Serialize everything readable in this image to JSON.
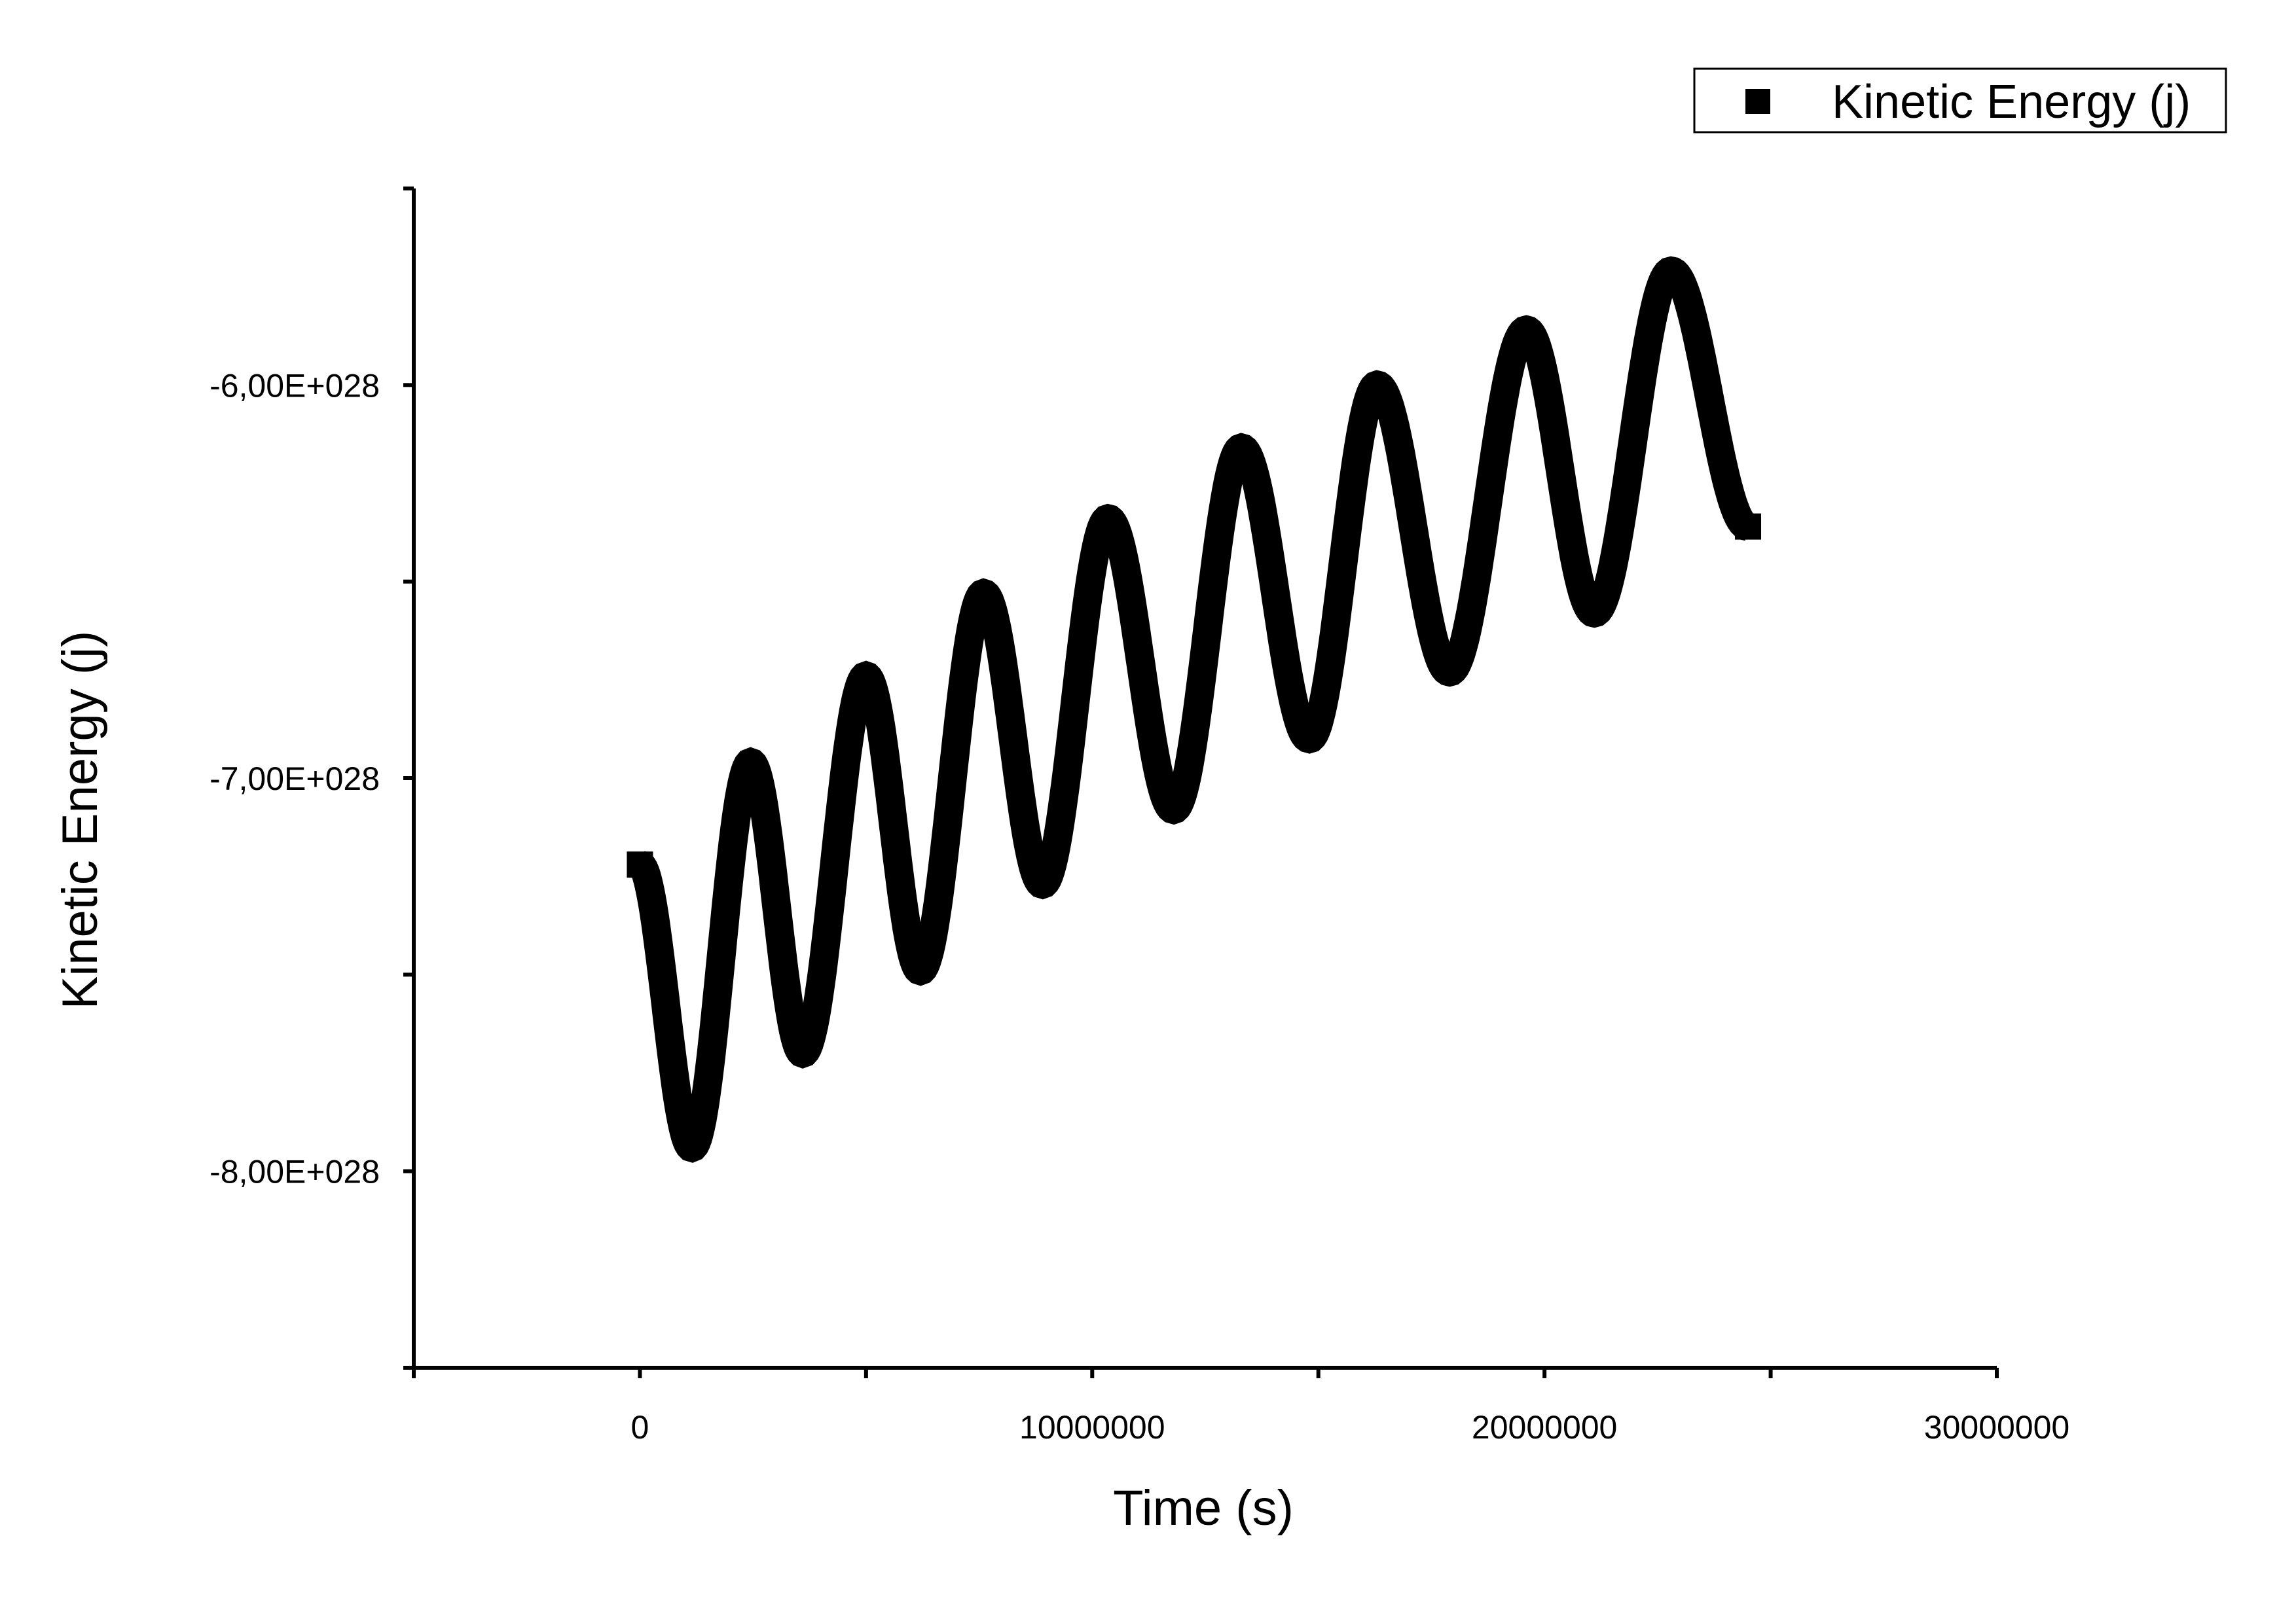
{
  "chart_data": {
    "type": "scatter",
    "xlabel": "Time (s)",
    "ylabel": "Kinetic Energy (j)",
    "xlim": [
      -5000000,
      30000000
    ],
    "ylim": [
      -8.5e+28,
      -5.5e+28
    ],
    "x_ticks": [
      0,
      10000000,
      20000000,
      30000000
    ],
    "x_tick_labels": [
      "0",
      "10000000",
      "20000000",
      "30000000"
    ],
    "y_ticks": [
      -8e+28,
      -7e+28,
      -6e+28
    ],
    "y_tick_labels": [
      "-8,00E+028",
      "-7,00E+028",
      "-6,00E+028"
    ],
    "legend": {
      "position": "top-right",
      "entries": [
        "Kinetic Energy (j)"
      ]
    },
    "grid": false,
    "series": [
      {
        "name": "Kinetic Energy (j)",
        "marker": "square",
        "color": "#000000",
        "points": [
          [
            0,
            -7.22e+28
          ],
          [
            1150000,
            -7.94e+28
          ],
          [
            2450000,
            -6.96e+28
          ],
          [
            3600000,
            -7.7e+28
          ],
          [
            5000000,
            -6.74e+28
          ],
          [
            6200000,
            -7.49e+28
          ],
          [
            7600000,
            -6.53e+28
          ],
          [
            8900000,
            -7.27e+28
          ],
          [
            10350000,
            -6.34e+28
          ],
          [
            11800000,
            -7.08e+28
          ],
          [
            13300000,
            -6.16e+28
          ],
          [
            14800000,
            -6.9e+28
          ],
          [
            16300000,
            -6e+28
          ],
          [
            17900000,
            -6.73e+28
          ],
          [
            19600000,
            -5.86e+28
          ],
          [
            21100000,
            -6.58e+28
          ],
          [
            22800000,
            -5.71e+28
          ],
          [
            24500000,
            -6.36e+28
          ]
        ]
      }
    ]
  }
}
